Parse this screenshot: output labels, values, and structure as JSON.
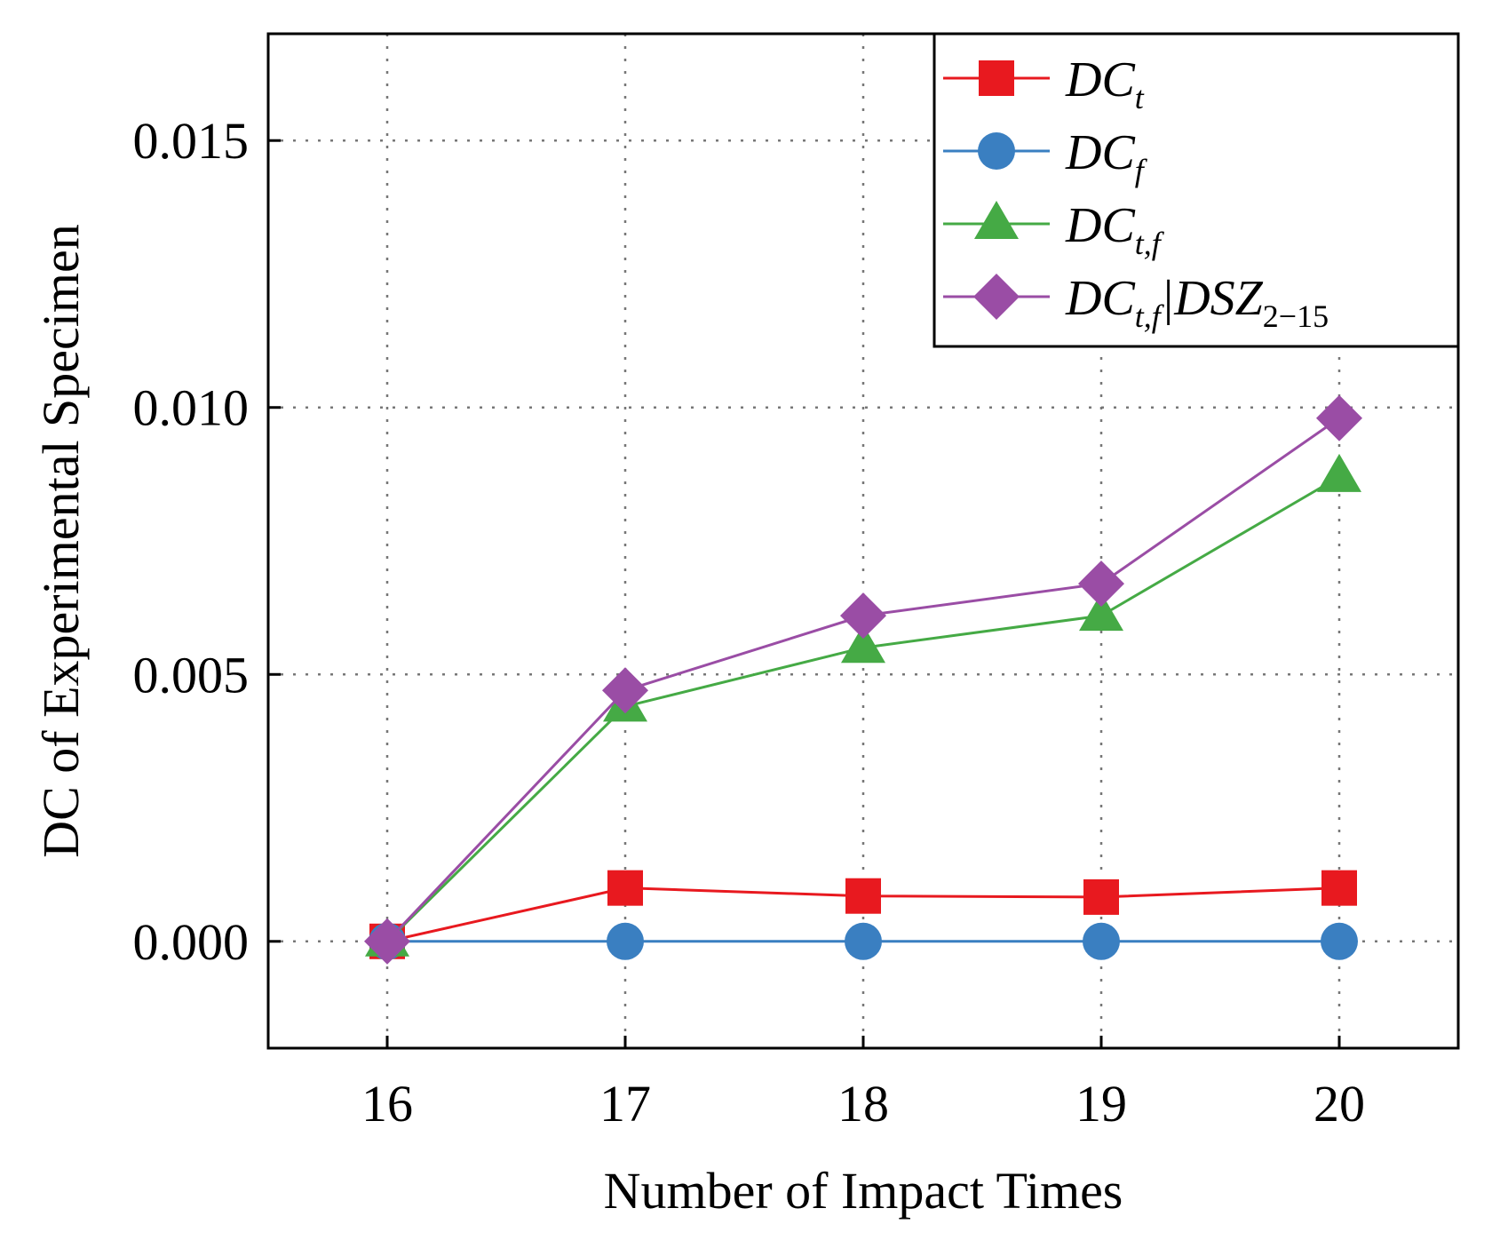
{
  "chart_data": {
    "type": "line",
    "xlabel": "Number of Impact Times",
    "ylabel": "DC of Experimental Specimen",
    "x": [
      16,
      17,
      18,
      19,
      20
    ],
    "xlim": [
      15.5,
      20.5
    ],
    "ylim": [
      -0.002,
      0.017
    ],
    "xticks": [
      "16",
      "17",
      "18",
      "19",
      "20"
    ],
    "yticks": [
      "0.000",
      "0.005",
      "0.010",
      "0.015"
    ],
    "ytick_values": [
      0.0,
      0.005,
      0.01,
      0.015
    ],
    "grid": true,
    "legend_position": "top-right",
    "series": [
      {
        "name_main": "DC",
        "name_sub": "t",
        "marker": "square",
        "color": "#e8191f",
        "values": [
          0.0,
          0.001,
          0.00085,
          0.00083,
          0.001
        ]
      },
      {
        "name_main": "DC",
        "name_sub": "f",
        "marker": "circle",
        "color": "#3a7fc1",
        "values": [
          0.0,
          0.0,
          0.0,
          0.0,
          0.0
        ]
      },
      {
        "name_main": "DC",
        "name_sub": "t,f",
        "marker": "triangle",
        "color": "#45aa45",
        "values": [
          0.0,
          0.0044,
          0.0055,
          0.0061,
          0.0087
        ]
      },
      {
        "name_main": "DC",
        "name_sub": "t,f",
        "name_suffix": "|DSZ",
        "name_suffix_sub": "2−15",
        "marker": "diamond",
        "color": "#9a4da5",
        "values": [
          0.0,
          0.0047,
          0.0061,
          0.0067,
          0.0098
        ]
      }
    ]
  }
}
